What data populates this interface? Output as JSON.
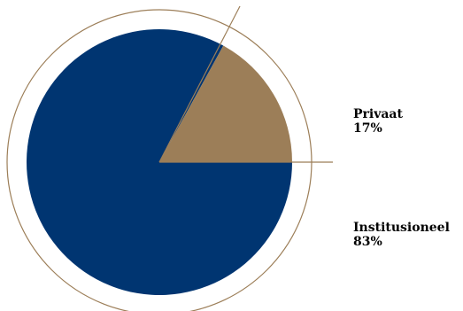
{
  "chart_data": {
    "type": "pie",
    "slices": [
      {
        "label": "Privaat",
        "value": 17,
        "value_label": "17%",
        "color": "#9c7e58"
      },
      {
        "label": "Institusioneel",
        "value": 83,
        "value_label": "83%",
        "color": "#003571"
      }
    ],
    "outline_color": "#9c7e58",
    "legend_placement": "right"
  }
}
